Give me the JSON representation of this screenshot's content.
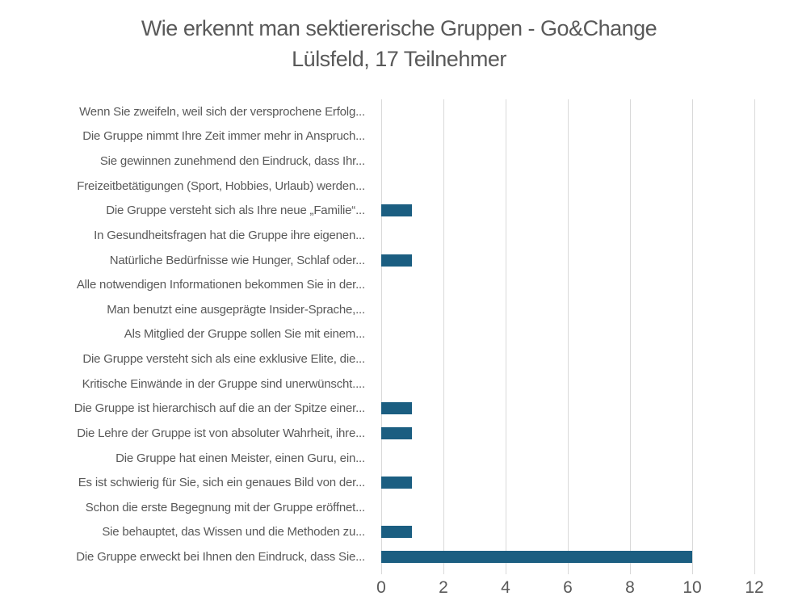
{
  "title": {
    "line1": "Wie erkennt man sektiererische Gruppen - Go&Change",
    "line2": "Lülsfeld, 17 Teilnehmer"
  },
  "chart_data": {
    "type": "bar",
    "orientation": "horizontal",
    "title": "Wie erkennt man sektiererische Gruppen - Go&Change Lülsfeld, 17 Teilnehmer",
    "categories": [
      "Wenn Sie zweifeln, weil sich der versprochene Erfolg...",
      "Die Gruppe nimmt Ihre Zeit immer mehr in Anspruch...",
      "Sie gewinnen zunehmend den Eindruck, dass Ihr...",
      "Freizeitbetätigungen (Sport, Hobbies, Urlaub) werden...",
      "Die Gruppe versteht sich als Ihre neue „Familie“...",
      "In Gesundheitsfragen hat die Gruppe ihre eigenen...",
      "Natürliche Bedürfnisse wie Hunger, Schlaf oder...",
      "Alle notwendigen Informationen bekommen Sie in der...",
      "Man benutzt eine ausgeprägte Insider-Sprache,...",
      "Als Mitglied der Gruppe sollen Sie mit einem...",
      "Die Gruppe versteht sich als eine exklusive Elite, die...",
      "Kritische Einwände in der Gruppe sind unerwünscht....",
      "Die Gruppe ist hierarchisch auf die an der Spitze einer...",
      "Die Lehre der Gruppe ist von absoluter Wahrheit, ihre...",
      "Die Gruppe hat einen Meister, einen Guru, ein...",
      "Es ist schwierig für Sie, sich ein genaues Bild von der...",
      "Schon die erste Begegnung mit der Gruppe eröffnet...",
      "Sie behauptet, das Wissen und die Methoden zu...",
      "Die Gruppe erweckt bei Ihnen den Eindruck, dass Sie..."
    ],
    "values": [
      0,
      0,
      0,
      0,
      1,
      0,
      1,
      0,
      0,
      0,
      0,
      0,
      1,
      1,
      0,
      1,
      0,
      1,
      10
    ],
    "xlim": [
      0,
      12
    ],
    "xticks": [
      0,
      2,
      4,
      6,
      8,
      10,
      12
    ],
    "grid": "vertical-only",
    "legend": "none",
    "bar_color": "#1B5E81",
    "gridline_color": "#D9D9D9",
    "text_color": "#595959"
  }
}
